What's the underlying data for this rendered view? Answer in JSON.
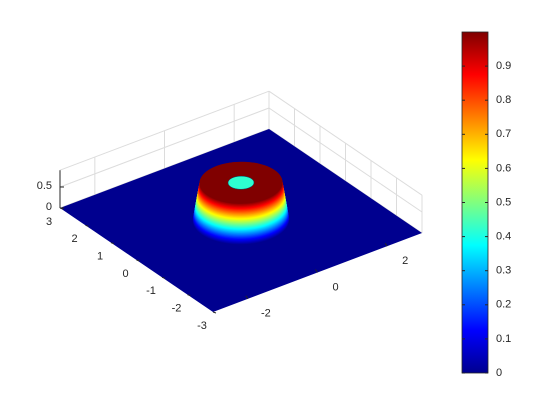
{
  "chart_data": {
    "type": "surface",
    "xlim": [
      -3,
      3
    ],
    "xticks": [
      -2,
      0,
      2
    ],
    "ylim": [
      -3,
      3
    ],
    "yticks": [
      -3,
      -2,
      -1,
      0,
      1,
      2,
      3
    ],
    "zlim": [
      0,
      0.9
    ],
    "zticks": [
      0,
      0.5
    ],
    "grid": true,
    "colormap": "jet",
    "clim": [
      0,
      1
    ],
    "cticks": [
      0,
      0.1,
      0.2,
      0.3,
      0.4,
      0.5,
      0.6,
      0.7,
      0.8,
      0.9
    ]
  }
}
